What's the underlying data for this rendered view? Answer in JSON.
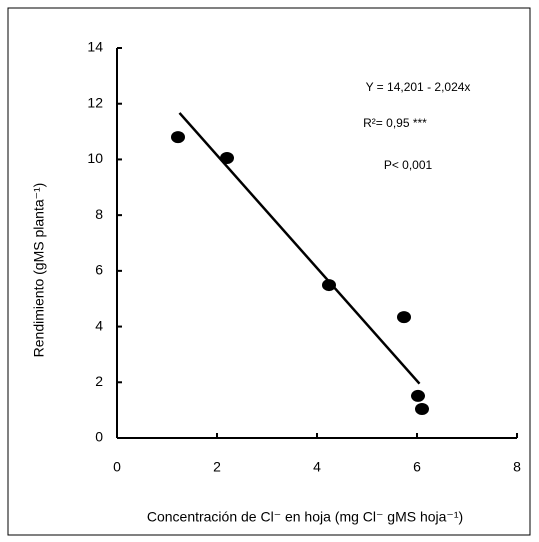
{
  "chart_data": {
    "type": "scatter",
    "ylabel": "Rendimiento  (gMS  planta⁻¹)",
    "xlabel": "Concentración  de  Cl⁻  en  hoja  (mg  Cl⁻  gMS  hoja⁻¹)",
    "annotations": [
      "Y = 14,201 - 2,024x",
      "R²= 0,95 ***",
      "P< 0,001"
    ],
    "points": {
      "color": "#000000",
      "x": [
        1.22,
        2.2,
        4.24,
        5.74,
        6.02,
        6.1
      ],
      "y": [
        10.8,
        10.05,
        5.49,
        4.34,
        1.51,
        1.04
      ]
    },
    "fit": {
      "color": "#000000",
      "x": [
        1.25,
        6.05
      ],
      "y": [
        11.67,
        1.95
      ]
    },
    "xlim": [
      0,
      8
    ],
    "xticks": [
      0,
      2,
      4,
      6,
      8
    ],
    "ylim": [
      0,
      14
    ],
    "yticks": [
      0,
      2,
      4,
      6,
      8,
      10,
      12,
      14
    ]
  }
}
